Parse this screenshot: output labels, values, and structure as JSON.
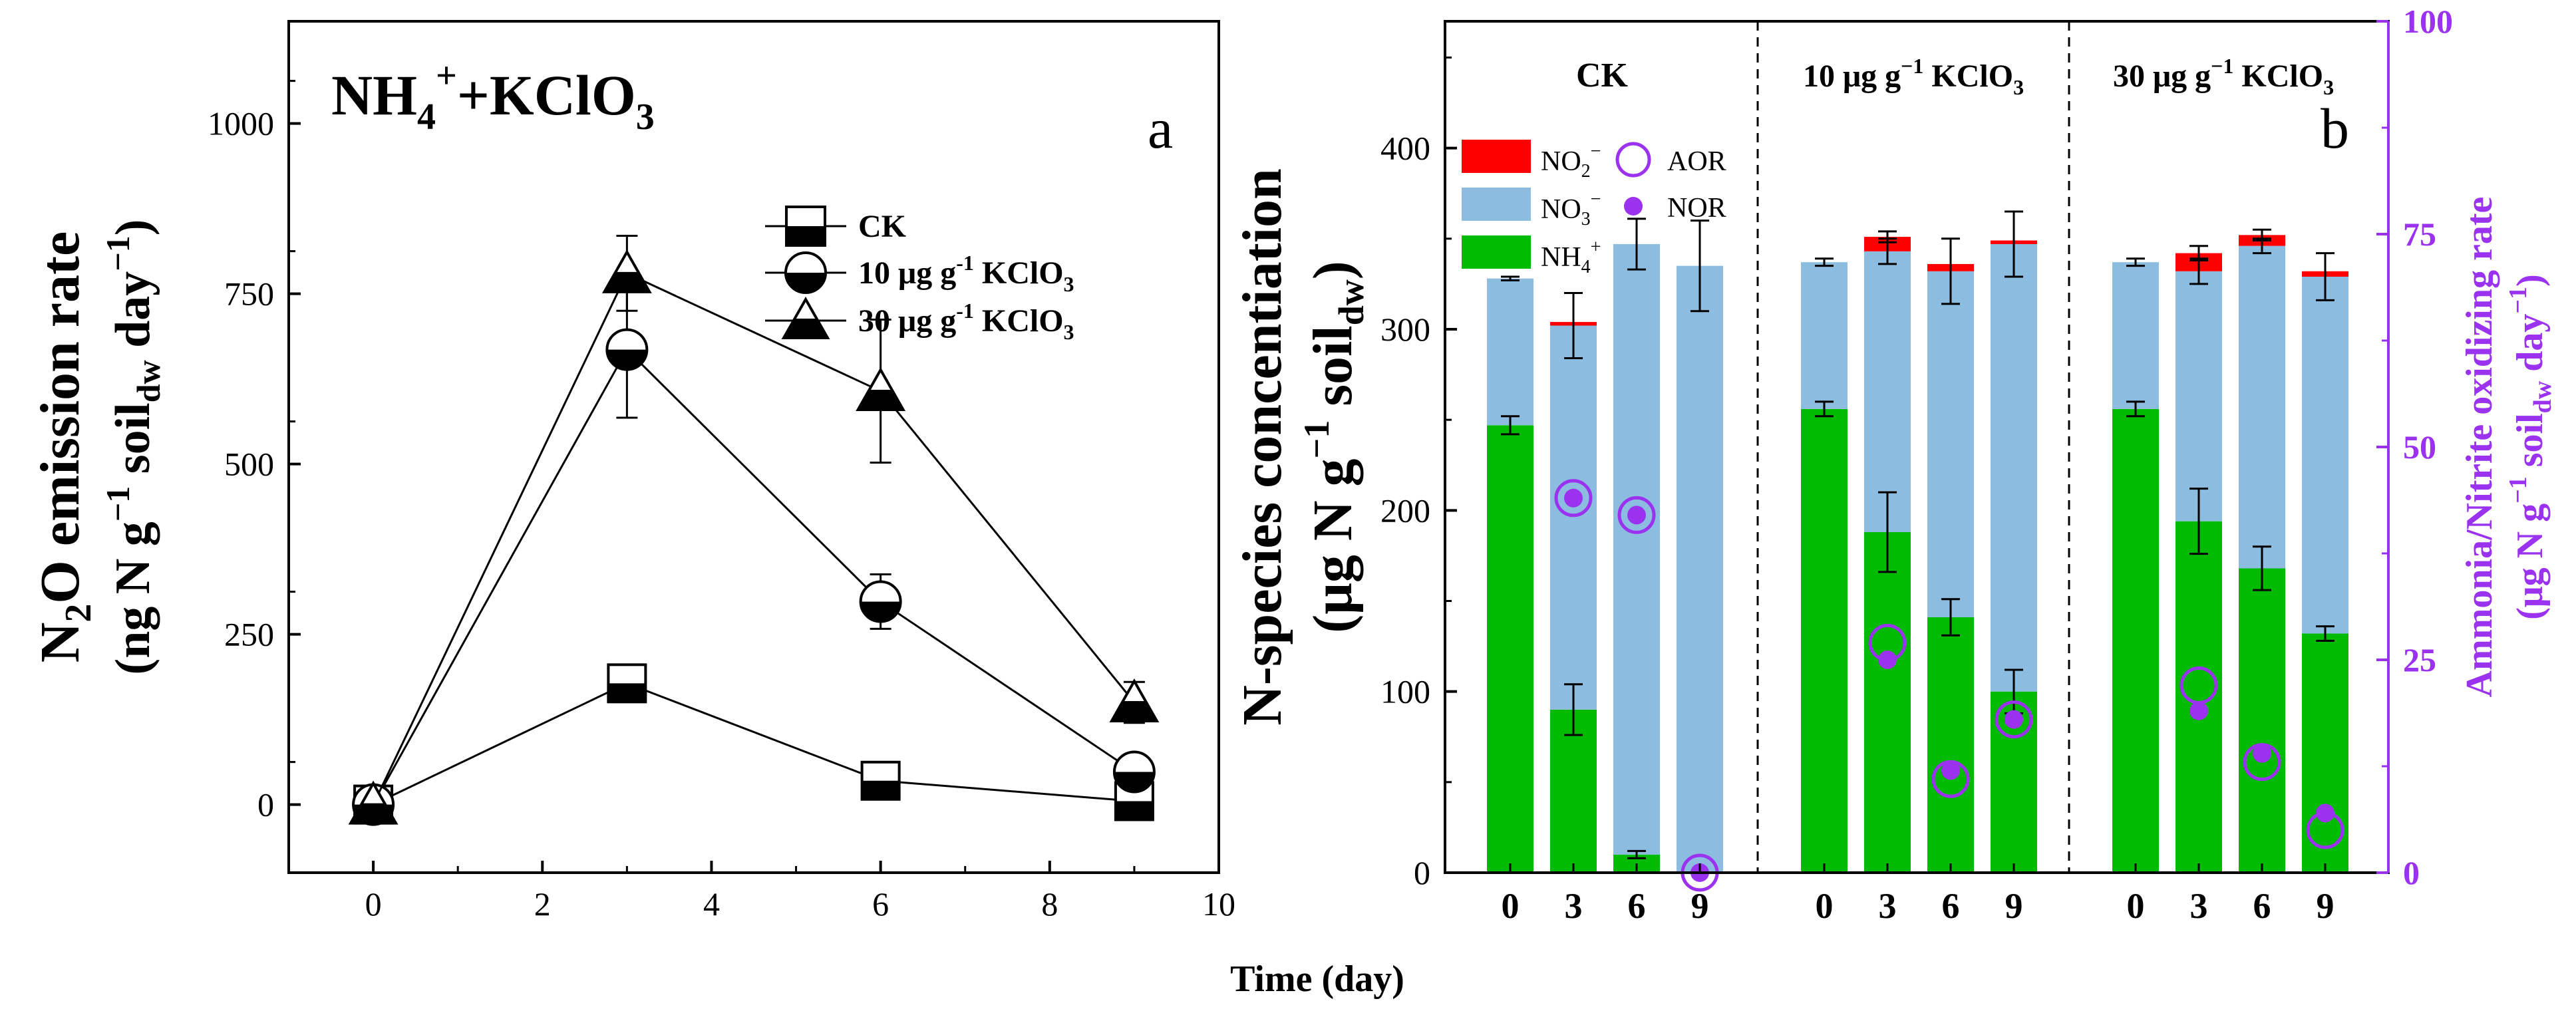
{
  "figure": {
    "shared_xlabel": "Time (day)"
  },
  "chart_data": [
    {
      "panel": "a",
      "type": "line",
      "title_main": "NH",
      "title_sub": "4",
      "title_sup": "+",
      "title_rest": "+KClO",
      "title_sub2": "3",
      "panel_label": "a",
      "ylabel_line1_a": "N",
      "ylabel_line1_b": "2",
      "ylabel_line1_c": "O emission rate",
      "ylabel_line2": "(ng N g",
      "ylabel_line2_sup": "−1",
      "ylabel_line2_b": " soil",
      "ylabel_line2_sub": "dw",
      "ylabel_line2_c": " day",
      "ylabel_line2_sup2": "−1",
      "ylabel_line2_d": ")",
      "xlim": [
        -1,
        10
      ],
      "ylim": [
        -100,
        1150
      ],
      "xticks": [
        0,
        2,
        4,
        6,
        8,
        10
      ],
      "yticks": [
        0,
        250,
        500,
        750,
        1000
      ],
      "xtick_labels": [
        "0",
        "2",
        "4",
        "6",
        "8",
        "10"
      ],
      "ytick_labels": [
        "0",
        "250",
        "500",
        "750",
        "1000"
      ],
      "legend_position": "upper-right",
      "series": [
        {
          "name": "CK",
          "marker": "square",
          "x": [
            0,
            3,
            6,
            9
          ],
          "y": [
            0,
            178,
            35,
            5
          ],
          "err": [
            0,
            15,
            8,
            5
          ]
        },
        {
          "name": "10 μg g-1 KClO3",
          "marker": "circle",
          "x": [
            0,
            3,
            6,
            9
          ],
          "y": [
            0,
            668,
            298,
            48
          ],
          "err": [
            0,
            100,
            40,
            10
          ]
        },
        {
          "name": "30 μg g-1 KClO3",
          "marker": "triangle",
          "x": [
            0,
            3,
            6,
            9
          ],
          "y": [
            0,
            780,
            607,
            150
          ],
          "err": [
            0,
            55,
            105,
            30
          ]
        }
      ],
      "legend_labels": {
        "ck": "CK",
        "k10_main": "10 μg g",
        "k10_sup": "-1",
        "k10_rest": " KClO",
        "k10_sub": "3",
        "k30_main": "30 μg g",
        "k30_sup": "-1",
        "k30_rest": " KClO",
        "k30_sub": "3"
      }
    },
    {
      "panel": "b",
      "type": "bar",
      "stacked": true,
      "panel_label": "b",
      "groups": [
        "CK",
        "10 μg g−1 KClO3",
        "30 μg g−1 KClO3"
      ],
      "group_label_parts": {
        "ck": "CK",
        "g10_main": "10 μg g",
        "g10_sup": "−1",
        "g10_rest": " KClO",
        "g10_sub": "3",
        "g30_main": "30 μg g",
        "g30_sup": "−1",
        "g30_rest": " KClO",
        "g30_sub": "3"
      },
      "categories": [
        "0",
        "3",
        "6",
        "9"
      ],
      "ylim_left": [
        0,
        470
      ],
      "yticks_left": [
        0,
        100,
        200,
        300,
        400
      ],
      "ytick_labels_left": [
        "0",
        "100",
        "200",
        "300",
        "400"
      ],
      "ylim_right": [
        0,
        100
      ],
      "yticks_right": [
        0,
        25,
        50,
        75,
        100
      ],
      "ytick_labels_right": [
        "0",
        "25",
        "50",
        "75",
        "100"
      ],
      "ylabel_left_line1": "N-species concentiation",
      "ylabel_left_line2": "(μg N g",
      "ylabel_left_line2_sup": "−1",
      "ylabel_left_line2_b": " soil",
      "ylabel_left_line2_sub": "dw",
      "ylabel_left_line2_c": ")",
      "ylabel_right_line1": "Ammonia/Nitrite oxidizing rate",
      "ylabel_right_line2": "(μg N g",
      "ylabel_right_line2_sup": "−1",
      "ylabel_right_line2_b": " soil",
      "ylabel_right_line2_sub": "dw",
      "ylabel_right_line2_c": " day",
      "ylabel_right_line2_sup2": "−1",
      "ylabel_right_line2_d": ")",
      "legend": {
        "no2_main": "NO",
        "no2_sub": "2",
        "no2_sup": "−",
        "no3_main": "NO",
        "no3_sub": "3",
        "no3_sup": "−",
        "nh4_main": "NH",
        "nh4_sub": "4",
        "nh4_sup": "+",
        "aor": "AOR",
        "nor": "NOR"
      },
      "colors": {
        "NH4": "#00bb00",
        "NO3": "#8cbde0",
        "NO2": "#ff0000",
        "rate": "#9a32f0"
      },
      "series": [
        {
          "name": "NH4+",
          "values": [
            [
              247,
              90,
              10,
              0
            ],
            [
              256,
              188,
              141,
              100
            ],
            [
              256,
              194,
              168,
              132
            ]
          ],
          "err": [
            [
              5,
              14,
              2,
              0
            ],
            [
              4,
              22,
              10,
              12
            ],
            [
              4,
              18,
              12,
              4
            ]
          ]
        },
        {
          "name": "NO3-",
          "values": [
            [
              81,
              212,
              337,
              335
            ],
            [
              81,
              155,
              191,
              247
            ],
            [
              81,
              138,
              178,
              197
            ]
          ],
          "err": [
            [
              1,
              18,
              14,
              25
            ],
            [
              2,
              7,
              18,
              18
            ],
            [
              2,
              7,
              4,
              13
            ]
          ]
        },
        {
          "name": "NO2-",
          "values": [
            [
              0,
              2,
              0,
              0
            ],
            [
              0,
              8,
              4,
              2
            ],
            [
              0,
              10,
              6,
              3
            ]
          ],
          "err": [
            [
              0,
              0,
              0,
              0
            ],
            [
              0,
              3,
              0,
              0
            ],
            [
              0,
              4,
              3,
              0
            ]
          ]
        }
      ],
      "rates": {
        "AOR": [
          [
            null,
            44,
            42,
            0
          ],
          [
            null,
            27,
            11,
            18
          ],
          [
            null,
            22,
            13,
            5
          ]
        ],
        "NOR": [
          [
            null,
            44,
            42,
            0
          ],
          [
            null,
            25,
            12,
            18
          ],
          [
            null,
            19,
            14,
            7
          ]
        ]
      }
    }
  ]
}
